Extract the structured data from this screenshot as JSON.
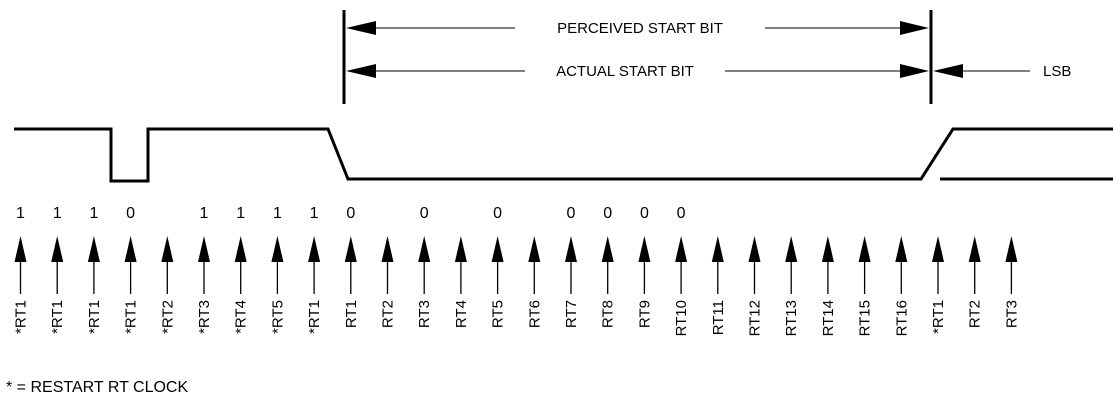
{
  "labels": {
    "perceived": "PERCEIVED START BIT",
    "actual": "ACTUAL START BIT",
    "lsb": "LSB",
    "footnote": "* = RESTART RT CLOCK"
  },
  "samples": [
    {
      "value": "1",
      "clock": "*RT1"
    },
    {
      "value": "1",
      "clock": "*RT1"
    },
    {
      "value": "1",
      "clock": "*RT1"
    },
    {
      "value": "0",
      "clock": "*RT1"
    },
    {
      "value": "",
      "clock": "*RT2"
    },
    {
      "value": "1",
      "clock": "*RT3"
    },
    {
      "value": "1",
      "clock": "*RT4"
    },
    {
      "value": "1",
      "clock": "*RT5"
    },
    {
      "value": "1",
      "clock": "*RT1"
    },
    {
      "value": "0",
      "clock": "RT1"
    },
    {
      "value": "",
      "clock": "RT2"
    },
    {
      "value": "0",
      "clock": "RT3"
    },
    {
      "value": "",
      "clock": "RT4"
    },
    {
      "value": "0",
      "clock": "RT5"
    },
    {
      "value": "",
      "clock": "RT6"
    },
    {
      "value": "0",
      "clock": "RT7"
    },
    {
      "value": "0",
      "clock": "RT8"
    },
    {
      "value": "0",
      "clock": "RT9"
    },
    {
      "value": "0",
      "clock": "RT10"
    },
    {
      "value": "",
      "clock": "RT11"
    },
    {
      "value": "",
      "clock": "RT12"
    },
    {
      "value": "",
      "clock": "RT13"
    },
    {
      "value": "",
      "clock": "RT14"
    },
    {
      "value": "",
      "clock": "RT15"
    },
    {
      "value": "",
      "clock": "RT16"
    },
    {
      "value": "",
      "clock": "*RT1"
    },
    {
      "value": "",
      "clock": "RT2"
    },
    {
      "value": "",
      "clock": "RT3"
    }
  ]
}
